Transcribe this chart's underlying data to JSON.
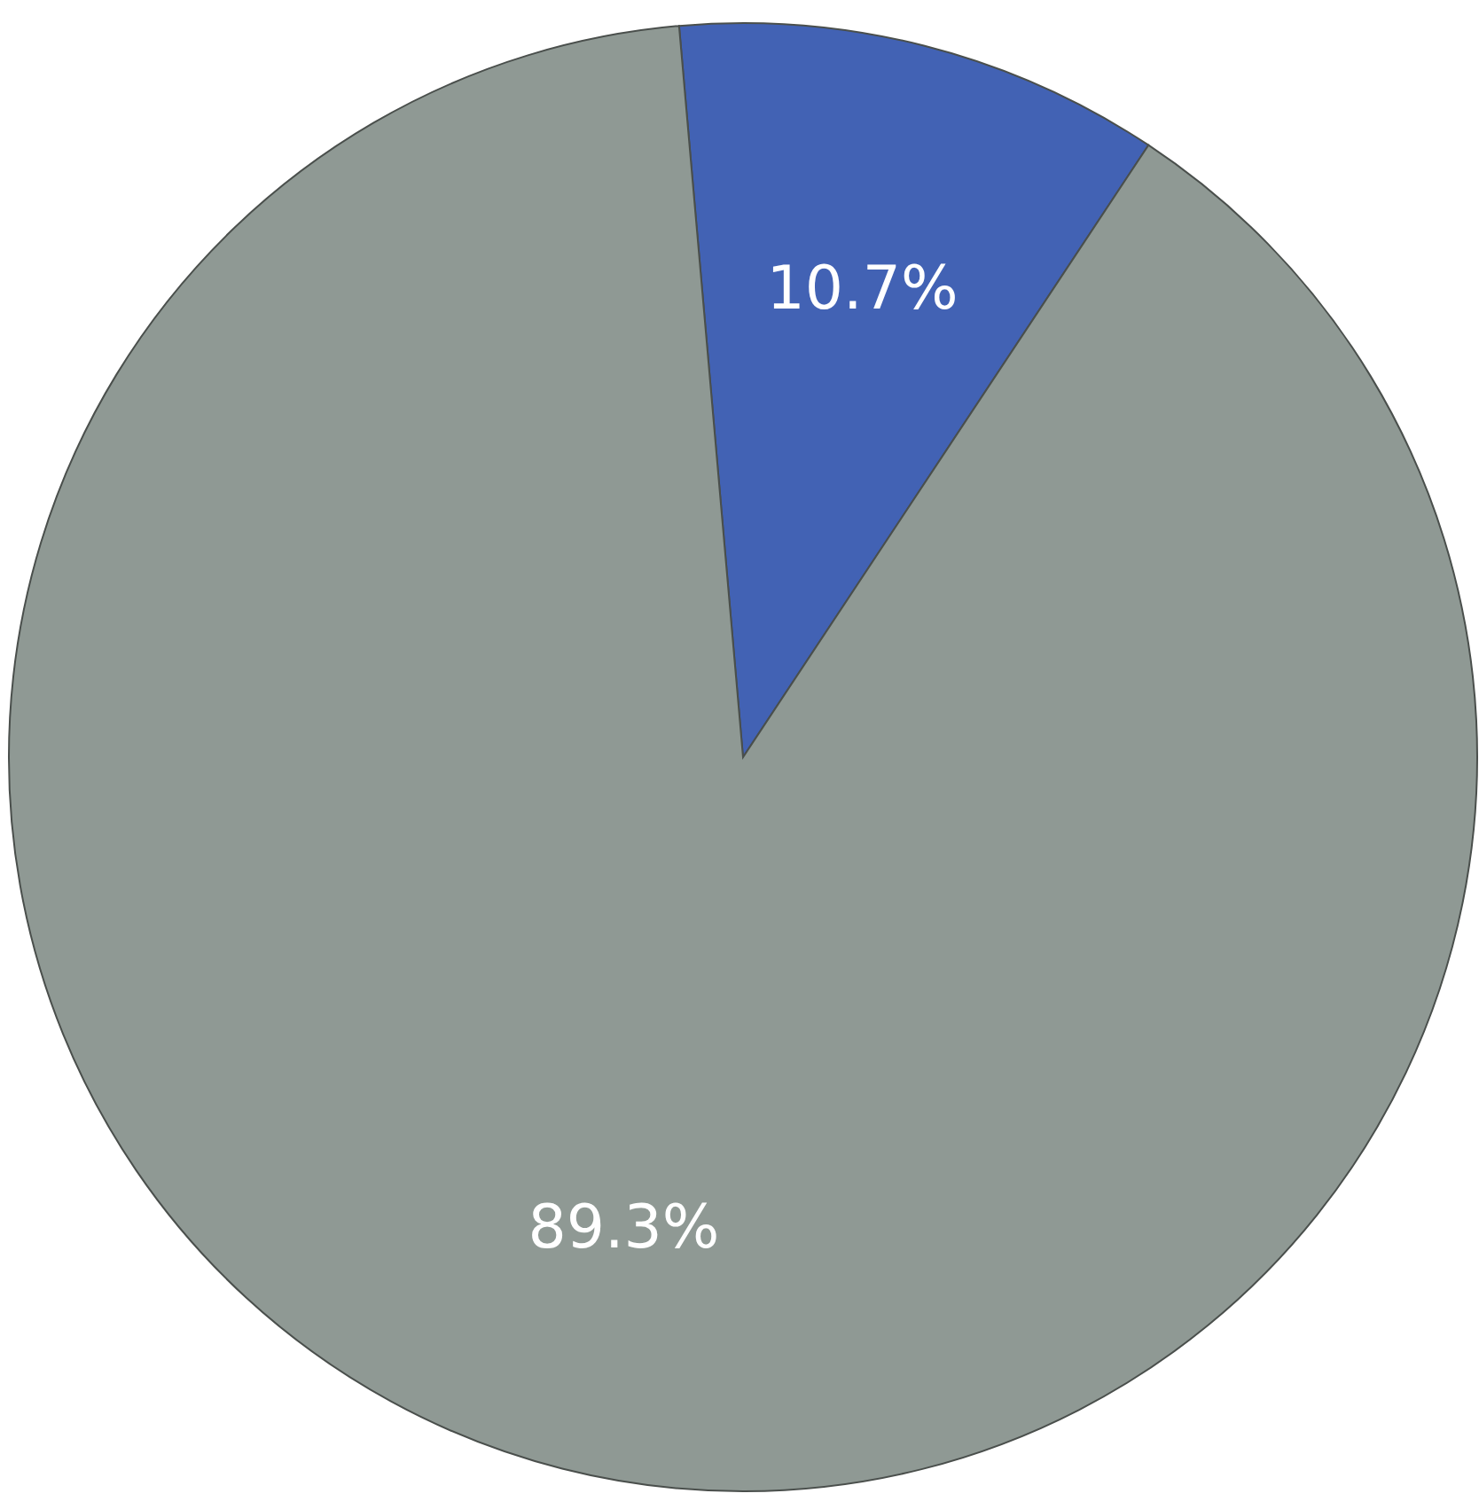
{
  "chart_data": {
    "type": "pie",
    "categories": [
      null,
      null
    ],
    "values": [
      10.7,
      89.3
    ],
    "colors": [
      "#4262b4",
      "#8f9994"
    ],
    "value_labels": [
      "10.7%",
      "89.3%"
    ]
  }
}
